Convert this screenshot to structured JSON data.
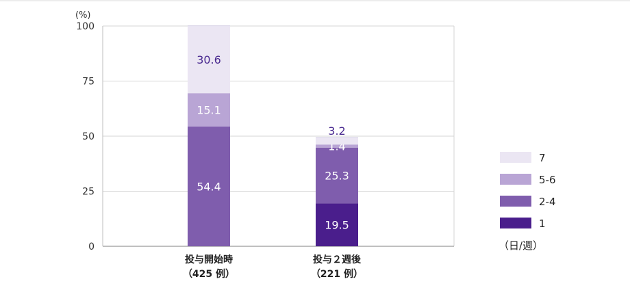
{
  "chart_data": {
    "type": "bar",
    "stacked": true,
    "ylabel": "(%)",
    "ylim": [
      0,
      100
    ],
    "yticks": [
      0,
      25,
      50,
      75,
      100
    ],
    "grid": true,
    "legend_position": "right",
    "legend_unit": "（日/週）",
    "categories": [
      {
        "line1": "投与開始時",
        "line2": "（425 例）"
      },
      {
        "line1": "投与２週後",
        "line2": "（221 例）"
      }
    ],
    "series": [
      {
        "name": "1",
        "color": "#4a1e8c",
        "label_color": "#ffffff",
        "values": [
          0,
          19.5
        ]
      },
      {
        "name": "2-4",
        "color": "#7f5dad",
        "label_color": "#ffffff",
        "values": [
          54.4,
          25.3
        ]
      },
      {
        "name": "5-6",
        "color": "#b9a5d5",
        "label_color": "#ffffff",
        "values": [
          15.1,
          1.4
        ]
      },
      {
        "name": "7",
        "color": "#ebe6f3",
        "label_color": "#4a2a90",
        "values": [
          30.6,
          3.2
        ]
      }
    ]
  }
}
